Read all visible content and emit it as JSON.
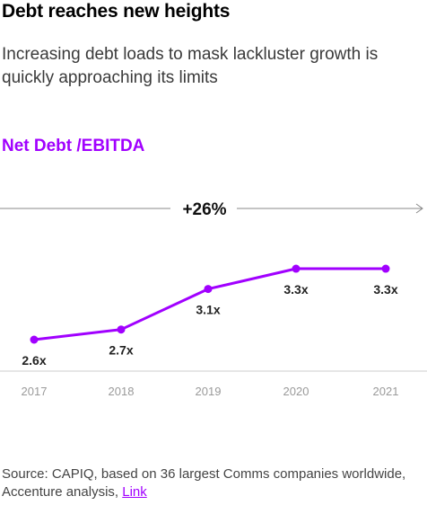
{
  "header": {
    "title": "Debt reaches new heights",
    "subtitle": "Increasing debt loads to mask lackluster growth is quickly approaching its limits"
  },
  "metric_label": "Net Debt /EBITDA",
  "growth_annotation": "+26%",
  "chart_data": {
    "type": "line",
    "title": "Net Debt /EBITDA",
    "x": [
      "2017",
      "2018",
      "2019",
      "2020",
      "2021"
    ],
    "series": [
      {
        "values": [
          2.6,
          2.7,
          3.1,
          3.3,
          3.3
        ],
        "labels": [
          "2.6x",
          "2.7x",
          "3.1x",
          "3.3x",
          "3.3x"
        ]
      }
    ],
    "annotation": "+26%",
    "grid": false,
    "colors": {
      "line": "#a100ff",
      "axis": "#cccccc",
      "tick_text": "#9a9a9a",
      "label_text": "#222222",
      "annotation_line": "#888888"
    }
  },
  "source": {
    "text": "Source: CAPIQ, based on 36 largest Comms companies worldwide, Accenture analysis, ",
    "link_label": "Link"
  },
  "colors": {
    "accent": "#a100ff"
  }
}
